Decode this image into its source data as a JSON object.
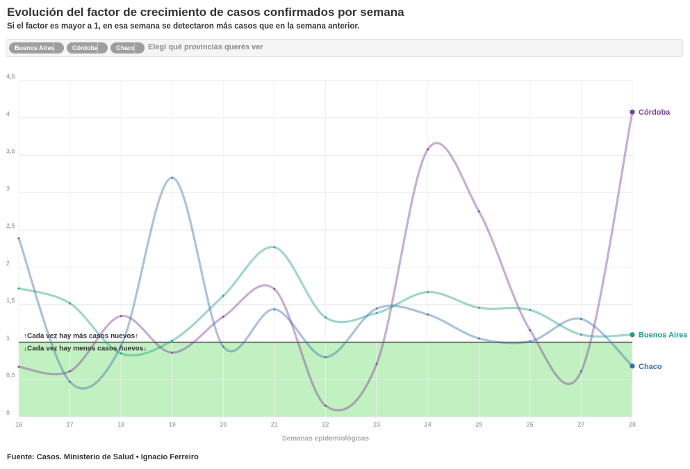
{
  "header": {
    "title": "Evolución del factor de crecimiento de casos confirmados por semana",
    "subtitle": "Si el factor es mayor a 1, en esa semana se detectaron más casos que en la semana anterior."
  },
  "filter": {
    "chips": [
      "Buenos Aires",
      "Córdoba",
      "Chaco"
    ],
    "hint": "Elegí qué provincias querés ver"
  },
  "footer": "Fuente: Casos. Ministerio de Salud • Ignacio Ferreiro",
  "chart_data": {
    "type": "line",
    "xlabel": "Semanas epidemiológicas",
    "ylabel": "",
    "x": [
      16,
      17,
      18,
      19,
      20,
      21,
      22,
      23,
      24,
      25,
      26,
      27,
      28
    ],
    "xlim": [
      16,
      28
    ],
    "ylim": [
      0,
      4.5
    ],
    "yticks": [
      0,
      0.5,
      1,
      1.5,
      2,
      2.5,
      3,
      3.5,
      4,
      4.5
    ],
    "ytick_labels": [
      "0",
      "0,5",
      "1",
      "1,5",
      "2",
      "2,5",
      "3",
      "3,5",
      "4",
      "4,5"
    ],
    "threshold": 1,
    "below_fill_color": "#c1f0c1",
    "annotations": {
      "above": "↑Cada vez hay más casos nuevos↑",
      "below": "↓Cada vez hay menos casos nuevos↓"
    },
    "grid": true,
    "series": [
      {
        "name": "Córdoba",
        "color": "#7b3f98",
        "values": [
          0.67,
          0.61,
          1.35,
          0.86,
          1.34,
          1.71,
          0.15,
          0.71,
          3.58,
          2.75,
          1.16,
          0.61,
          4.08
        ]
      },
      {
        "name": "Buenos Aires",
        "color": "#1e9e84",
        "values": [
          1.72,
          1.52,
          0.85,
          1.02,
          1.62,
          2.27,
          1.33,
          1.39,
          1.67,
          1.46,
          1.43,
          1.1,
          1.1
        ]
      },
      {
        "name": "Chaco",
        "color": "#3a6fa8",
        "values": [
          2.39,
          0.47,
          0.95,
          3.2,
          0.94,
          1.44,
          0.8,
          1.45,
          1.37,
          1.05,
          1.01,
          1.31,
          0.68
        ]
      }
    ]
  }
}
